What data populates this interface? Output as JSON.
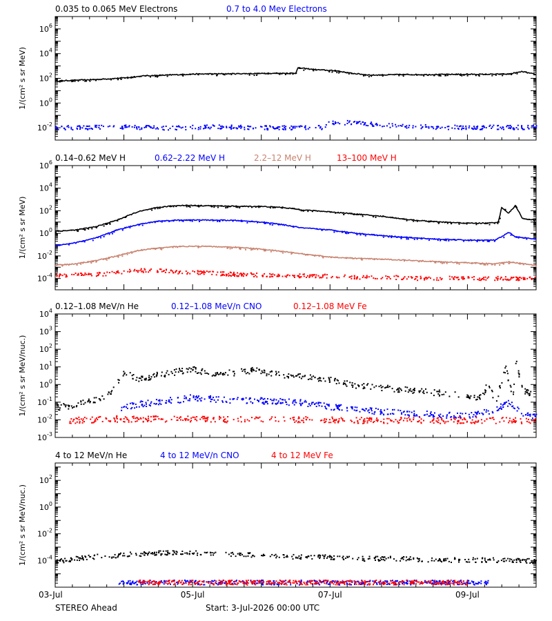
{
  "footer": {
    "spacecraft": "STEREO Ahead",
    "start": "Start:  3-Jul-2026 00:00 UTC"
  },
  "chart_data": [
    {
      "type": "scatter",
      "yscale": "log",
      "ylabel": "1/(cm² s sr MeV)",
      "ylim": [
        0.001,
        10000000
      ],
      "xlim": [
        "03-Jul",
        "10-Jul"
      ],
      "y_ticks": [
        {
          "value": 0.01,
          "base": "10",
          "exp": "-2"
        },
        {
          "value": 1,
          "base": "10",
          "exp": "0"
        },
        {
          "value": 100,
          "base": "10",
          "exp": "2"
        },
        {
          "value": 10000,
          "base": "10",
          "exp": "4"
        },
        {
          "value": 1000000,
          "base": "10",
          "exp": "6"
        }
      ],
      "series": [
        {
          "name": "0.035 to 0.065 MeV Electrons",
          "color": "#000000",
          "style": "line",
          "points": [
            [
              0,
              60
            ],
            [
              0.3,
              70
            ],
            [
              0.6,
              80
            ],
            [
              0.9,
              100
            ],
            [
              1.1,
              120
            ],
            [
              1.3,
              160
            ],
            [
              1.6,
              180
            ],
            [
              2.0,
              220
            ],
            [
              2.4,
              230
            ],
            [
              2.8,
              240
            ],
            [
              3.2,
              250
            ],
            [
              3.5,
              260
            ],
            [
              3.53,
              700
            ],
            [
              3.8,
              500
            ],
            [
              4.1,
              400
            ],
            [
              4.3,
              260
            ],
            [
              4.6,
              180
            ],
            [
              5.0,
              200
            ],
            [
              5.4,
              200
            ],
            [
              5.8,
              210
            ],
            [
              6.2,
              210
            ],
            [
              6.6,
              220
            ],
            [
              6.8,
              350
            ],
            [
              7.0,
              200
            ]
          ]
        },
        {
          "name": "0.7 to 4.0 Mev Electrons",
          "color": "#0000ff",
          "style": "dots",
          "points": [
            [
              0,
              0.012
            ],
            [
              0.4,
              0.011
            ],
            [
              0.8,
              0.013
            ],
            [
              1.2,
              0.012
            ],
            [
              1.6,
              0.011
            ],
            [
              2.0,
              0.012
            ],
            [
              2.4,
              0.013
            ],
            [
              2.8,
              0.012
            ],
            [
              3.2,
              0.011
            ],
            [
              3.6,
              0.012
            ],
            [
              3.9,
              0.012
            ],
            [
              4.0,
              0.03
            ],
            [
              4.3,
              0.028
            ],
            [
              4.6,
              0.022
            ],
            [
              5.0,
              0.015
            ],
            [
              5.4,
              0.013
            ],
            [
              5.8,
              0.012
            ],
            [
              6.2,
              0.012
            ],
            [
              6.6,
              0.012
            ],
            [
              7.0,
              0.012
            ]
          ]
        }
      ]
    },
    {
      "type": "scatter",
      "yscale": "log",
      "ylabel": "1/(cm² s sr MeV)",
      "ylim": [
        1e-05,
        1000000
      ],
      "xlim": [
        "03-Jul",
        "10-Jul"
      ],
      "y_ticks": [
        {
          "value": 0.0001,
          "base": "10",
          "exp": "-4"
        },
        {
          "value": 0.01,
          "base": "10",
          "exp": "-2"
        },
        {
          "value": 1,
          "base": "10",
          "exp": "0"
        },
        {
          "value": 100,
          "base": "10",
          "exp": "2"
        },
        {
          "value": 10000,
          "base": "10",
          "exp": "4"
        },
        {
          "value": 1000000,
          "base": "10",
          "exp": "6"
        }
      ],
      "series": [
        {
          "name": "0.14–0.62 MeV H",
          "color": "#000000",
          "style": "line",
          "points": [
            [
              0,
              1.5
            ],
            [
              0.3,
              2
            ],
            [
              0.6,
              4
            ],
            [
              0.9,
              15
            ],
            [
              1.2,
              80
            ],
            [
              1.5,
              200
            ],
            [
              1.8,
              300
            ],
            [
              2.2,
              280
            ],
            [
              2.6,
              250
            ],
            [
              3.0,
              240
            ],
            [
              3.3,
              200
            ],
            [
              3.6,
              120
            ],
            [
              4.0,
              80
            ],
            [
              4.4,
              50
            ],
            [
              4.8,
              30
            ],
            [
              5.2,
              15
            ],
            [
              5.6,
              10
            ],
            [
              6.0,
              8
            ],
            [
              6.3,
              8
            ],
            [
              6.45,
              10
            ],
            [
              6.5,
              200
            ],
            [
              6.6,
              60
            ],
            [
              6.7,
              300
            ],
            [
              6.8,
              20
            ],
            [
              7.0,
              15
            ]
          ]
        },
        {
          "name": "0.62–2.22 MeV H",
          "color": "#0000ff",
          "style": "line",
          "points": [
            [
              0,
              0.08
            ],
            [
              0.3,
              0.15
            ],
            [
              0.6,
              0.4
            ],
            [
              0.9,
              2
            ],
            [
              1.2,
              6
            ],
            [
              1.5,
              12
            ],
            [
              1.8,
              15
            ],
            [
              2.2,
              15
            ],
            [
              2.6,
              14
            ],
            [
              3.0,
              10
            ],
            [
              3.3,
              6
            ],
            [
              3.6,
              3
            ],
            [
              4.0,
              2
            ],
            [
              4.4,
              1
            ],
            [
              4.8,
              0.6
            ],
            [
              5.2,
              0.4
            ],
            [
              5.6,
              0.3
            ],
            [
              6.0,
              0.25
            ],
            [
              6.4,
              0.25
            ],
            [
              6.5,
              0.5
            ],
            [
              6.6,
              1.2
            ],
            [
              6.7,
              0.5
            ],
            [
              7.0,
              0.3
            ]
          ]
        },
        {
          "name": "2.2–12 MeV H",
          "color": "#c8826e",
          "style": "line",
          "points": [
            [
              0,
              0.0015
            ],
            [
              0.3,
              0.002
            ],
            [
              0.6,
              0.004
            ],
            [
              0.9,
              0.01
            ],
            [
              1.2,
              0.03
            ],
            [
              1.5,
              0.05
            ],
            [
              1.8,
              0.07
            ],
            [
              2.2,
              0.07
            ],
            [
              2.6,
              0.06
            ],
            [
              3.0,
              0.04
            ],
            [
              3.3,
              0.025
            ],
            [
              3.6,
              0.015
            ],
            [
              4.0,
              0.008
            ],
            [
              4.4,
              0.006
            ],
            [
              4.8,
              0.005
            ],
            [
              5.2,
              0.004
            ],
            [
              5.6,
              0.003
            ],
            [
              6.0,
              0.0025
            ],
            [
              6.4,
              0.002
            ],
            [
              6.6,
              0.003
            ],
            [
              7.0,
              0.0015
            ]
          ]
        },
        {
          "name": "13–100 MeV H",
          "color": "#ff0000",
          "style": "dots",
          "points": [
            [
              0,
              0.0002
            ],
            [
              0.4,
              0.00025
            ],
            [
              0.8,
              0.0003
            ],
            [
              1.0,
              0.0005
            ],
            [
              1.3,
              0.0006
            ],
            [
              1.6,
              0.0005
            ],
            [
              2.0,
              0.0004
            ],
            [
              2.4,
              0.0003
            ],
            [
              2.8,
              0.00025
            ],
            [
              3.2,
              0.0002
            ],
            [
              3.6,
              0.0002
            ],
            [
              4.0,
              0.00018
            ],
            [
              4.4,
              0.00015
            ],
            [
              4.8,
              0.00015
            ],
            [
              5.2,
              0.00012
            ],
            [
              5.6,
              0.00012
            ],
            [
              6.0,
              0.00012
            ],
            [
              6.4,
              0.00012
            ],
            [
              7.0,
              0.0001
            ]
          ]
        }
      ]
    },
    {
      "type": "scatter",
      "yscale": "log",
      "ylabel": "1/(cm² s sr MeV/nuc.)",
      "ylim": [
        0.001,
        10000
      ],
      "xlim": [
        "03-Jul",
        "10-Jul"
      ],
      "y_ticks": [
        {
          "value": 0.001,
          "base": "10",
          "exp": "-3"
        },
        {
          "value": 0.01,
          "base": "10",
          "exp": "-2"
        },
        {
          "value": 0.1,
          "base": "10",
          "exp": "-1"
        },
        {
          "value": 1,
          "base": "10",
          "exp": "0"
        },
        {
          "value": 10,
          "base": "10",
          "exp": "1"
        },
        {
          "value": 100,
          "base": "10",
          "exp": "2"
        },
        {
          "value": 1000,
          "base": "10",
          "exp": "3"
        },
        {
          "value": 10000,
          "base": "10",
          "exp": "4"
        }
      ],
      "series": [
        {
          "name": "0.12–1.08 MeV/n He",
          "color": "#000000",
          "style": "dots",
          "points": [
            [
              0,
              0.05
            ],
            [
              0.3,
              0.08
            ],
            [
              0.6,
              0.15
            ],
            [
              0.8,
              0.4
            ],
            [
              1.0,
              5
            ],
            [
              1.2,
              2
            ],
            [
              1.5,
              4
            ],
            [
              1.8,
              6
            ],
            [
              2.0,
              8
            ],
            [
              2.2,
              5
            ],
            [
              2.6,
              5
            ],
            [
              2.9,
              7
            ],
            [
              3.2,
              4
            ],
            [
              3.6,
              3
            ],
            [
              4.0,
              2
            ],
            [
              4.3,
              1
            ],
            [
              4.6,
              0.8
            ],
            [
              5.0,
              0.6
            ],
            [
              5.4,
              0.4
            ],
            [
              5.8,
              0.3
            ],
            [
              6.2,
              0.2
            ],
            [
              6.3,
              1.5
            ],
            [
              6.4,
              0.1
            ],
            [
              6.55,
              10
            ],
            [
              6.65,
              0.2
            ],
            [
              6.7,
              20
            ],
            [
              6.8,
              0.5
            ],
            [
              7.0,
              0.2
            ]
          ]
        },
        {
          "name": "0.12–1.08 MeV/n CNO",
          "color": "#0000ff",
          "style": "dots",
          "points": [
            [
              0.95,
              0.05
            ],
            [
              1.2,
              0.08
            ],
            [
              1.5,
              0.12
            ],
            [
              1.8,
              0.15
            ],
            [
              2.0,
              0.2
            ],
            [
              2.4,
              0.15
            ],
            [
              2.8,
              0.14
            ],
            [
              3.2,
              0.12
            ],
            [
              3.6,
              0.1
            ],
            [
              4.0,
              0.06
            ],
            [
              4.4,
              0.04
            ],
            [
              4.8,
              0.03
            ],
            [
              5.2,
              0.025
            ],
            [
              5.6,
              0.02
            ],
            [
              6.0,
              0.02
            ],
            [
              6.3,
              0.03
            ],
            [
              6.6,
              0.1
            ],
            [
              6.8,
              0.02
            ],
            [
              7.0,
              0.02
            ]
          ]
        },
        {
          "name": "0.12–1.08 MeV Fe",
          "color": "#ff0000",
          "style": "dots",
          "points": [
            [
              0.2,
              0.01
            ],
            [
              0.8,
              0.012
            ],
            [
              1.4,
              0.012
            ],
            [
              2.0,
              0.012
            ],
            [
              2.6,
              0.011
            ],
            [
              3.2,
              0.011
            ],
            [
              3.8,
              0.011
            ],
            [
              4.4,
              0.01
            ],
            [
              5.0,
              0.01
            ],
            [
              5.6,
              0.01
            ],
            [
              6.2,
              0.01
            ],
            [
              7.0,
              0.01
            ]
          ]
        }
      ]
    },
    {
      "type": "scatter",
      "yscale": "log",
      "ylabel": "1/(cm² s sr MeV/nuc.)",
      "ylim": [
        1e-06,
        2000
      ],
      "xlim": [
        "03-Jul",
        "10-Jul"
      ],
      "y_ticks": [
        {
          "value": 0.0001,
          "base": "10",
          "exp": "-4"
        },
        {
          "value": 0.01,
          "base": "10",
          "exp": "-2"
        },
        {
          "value": 1,
          "base": "10",
          "exp": "0"
        },
        {
          "value": 100,
          "base": "10",
          "exp": "2"
        }
      ],
      "series": [
        {
          "name": "4 to 12 MeV/n He",
          "color": "#000000",
          "style": "dots",
          "points": [
            [
              0,
              0.0001
            ],
            [
              0.5,
              0.0002
            ],
            [
              1.0,
              0.0003
            ],
            [
              1.5,
              0.0004
            ],
            [
              2.0,
              0.0004
            ],
            [
              2.5,
              0.0003
            ],
            [
              3.0,
              0.0003
            ],
            [
              3.5,
              0.0002
            ],
            [
              4.0,
              0.0002
            ],
            [
              4.5,
              0.00015
            ],
            [
              5.0,
              0.00015
            ],
            [
              5.5,
              0.00012
            ],
            [
              6.0,
              0.00012
            ],
            [
              6.5,
              0.00012
            ],
            [
              7.0,
              0.0001
            ]
          ]
        },
        {
          "name": "4 to 12 MeV/n CNO",
          "color": "#0000ff",
          "style": "dots",
          "points": [
            [
              0.9,
              2.5e-06
            ],
            [
              1.8,
              2.5e-06
            ],
            [
              2.7,
              2.5e-06
            ],
            [
              3.6,
              2.5e-06
            ],
            [
              4.4,
              2.5e-06
            ],
            [
              5.5,
              2.5e-06
            ],
            [
              6.3,
              2.5e-06
            ]
          ]
        },
        {
          "name": "4 to 12 MeV Fe",
          "color": "#ff0000",
          "style": "dots",
          "points": [
            [
              1.2,
              2.5e-06
            ],
            [
              2.3,
              2.5e-06
            ],
            [
              3.3,
              2.5e-06
            ],
            [
              4.2,
              2.5e-06
            ],
            [
              5.1,
              2.5e-06
            ],
            [
              6.0,
              2.5e-06
            ]
          ]
        }
      ],
      "x_ticks": [
        "03-Jul",
        "05-Jul",
        "07-Jul",
        "09-Jul"
      ]
    }
  ]
}
